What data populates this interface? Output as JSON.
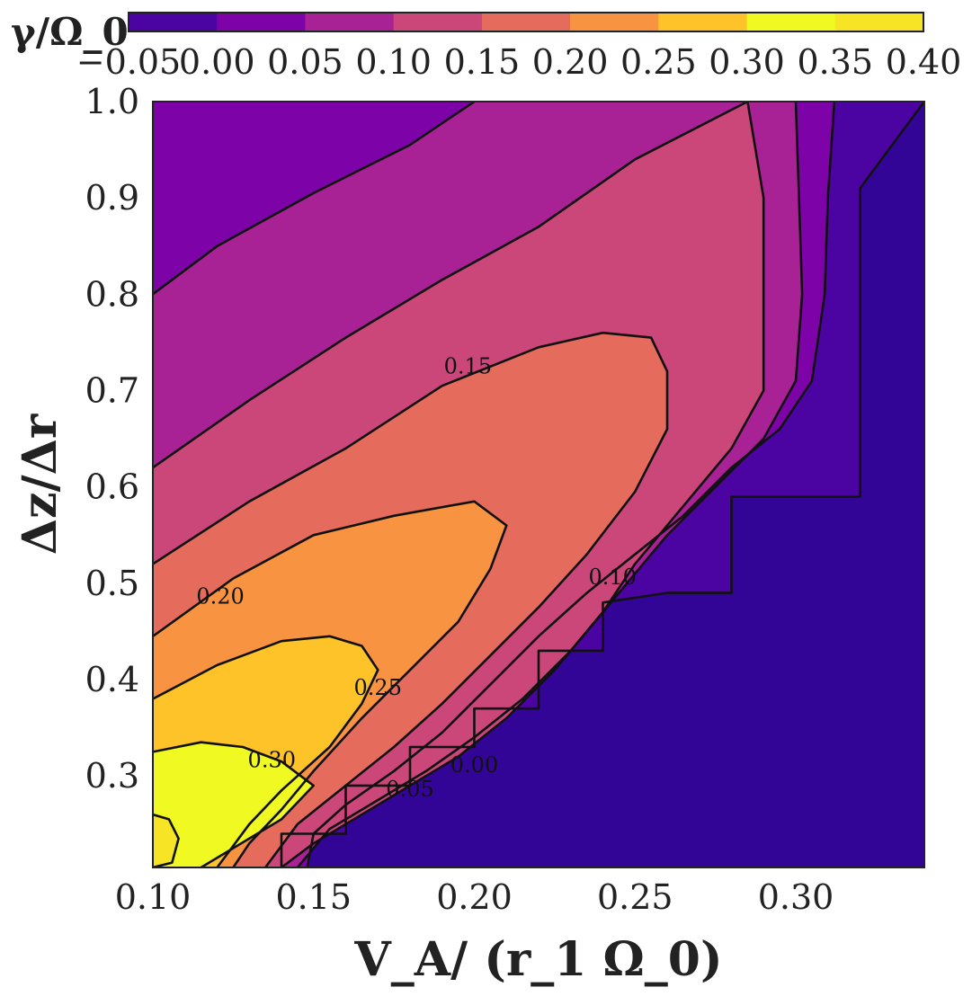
{
  "chart_data": {
    "type": "heatmap",
    "subtype": "filled-contour",
    "colormap": "plasma",
    "xlabel": "V_A/ (r_1 Ω_0)",
    "ylabel": "Δz/Δr",
    "colorbar_label": "γ/Ω_0",
    "colorbar_position": "top",
    "grid": false,
    "xlim": [
      0.1,
      0.34
    ],
    "ylim": [
      0.205,
      1.0
    ],
    "x_ticks": [
      "0.10",
      "0.15",
      "0.20",
      "0.25",
      "0.30"
    ],
    "y_ticks": [
      "0.3",
      "0.4",
      "0.5",
      "0.6",
      "0.7",
      "0.8",
      "0.9",
      "1.0"
    ],
    "levels": [
      -0.05,
      0.0,
      0.05,
      0.1,
      0.15,
      0.2,
      0.25,
      0.3,
      0.35,
      0.4
    ],
    "colorbar_ticks": [
      "−0.05",
      "0.00",
      "0.05",
      "0.10",
      "0.15",
      "0.20",
      "0.25",
      "0.30",
      "0.35",
      "0.40"
    ],
    "band_colors": [
      "#4b03a1",
      "#7d03a8",
      "#a82296",
      "#cb4679",
      "#e56b5d",
      "#f89441",
      "#fdc328",
      "#f0f921",
      "#f7e525"
    ],
    "below_min_color": "#330597",
    "contour_labels": [
      {
        "text": "0.00",
        "x": 0.2,
        "y": 0.31
      },
      {
        "text": "0.05",
        "x": 0.18,
        "y": 0.285
      },
      {
        "text": "0.10",
        "x": 0.243,
        "y": 0.505
      },
      {
        "text": "0.15",
        "x": 0.198,
        "y": 0.724
      },
      {
        "text": "0.20",
        "x": 0.121,
        "y": 0.485
      },
      {
        "text": "0.25",
        "x": 0.17,
        "y": 0.39
      },
      {
        "text": "0.30",
        "x": 0.137,
        "y": 0.315
      }
    ],
    "contours": [
      {
        "level": 0.35,
        "points": [
          [
            0.1,
            0.26
          ],
          [
            0.105,
            0.255
          ],
          [
            0.108,
            0.235
          ],
          [
            0.106,
            0.21
          ],
          [
            0.1,
            0.205
          ]
        ]
      },
      {
        "level": 0.3,
        "points": [
          [
            0.1,
            0.325
          ],
          [
            0.115,
            0.335
          ],
          [
            0.128,
            0.33
          ],
          [
            0.14,
            0.315
          ],
          [
            0.15,
            0.29
          ],
          [
            0.14,
            0.255
          ],
          [
            0.13,
            0.235
          ],
          [
            0.115,
            0.205
          ]
        ]
      },
      {
        "level": 0.25,
        "points": [
          [
            0.1,
            0.38
          ],
          [
            0.12,
            0.415
          ],
          [
            0.14,
            0.44
          ],
          [
            0.155,
            0.445
          ],
          [
            0.165,
            0.435
          ],
          [
            0.17,
            0.41
          ],
          [
            0.165,
            0.375
          ],
          [
            0.155,
            0.33
          ],
          [
            0.14,
            0.285
          ],
          [
            0.13,
            0.25
          ],
          [
            0.12,
            0.205
          ]
        ]
      },
      {
        "level": 0.2,
        "points": [
          [
            0.1,
            0.445
          ],
          [
            0.125,
            0.505
          ],
          [
            0.15,
            0.55
          ],
          [
            0.175,
            0.57
          ],
          [
            0.2,
            0.585
          ],
          [
            0.21,
            0.56
          ],
          [
            0.205,
            0.515
          ],
          [
            0.195,
            0.46
          ],
          [
            0.18,
            0.41
          ],
          [
            0.165,
            0.36
          ],
          [
            0.15,
            0.305
          ],
          [
            0.14,
            0.265
          ],
          [
            0.13,
            0.23
          ],
          [
            0.125,
            0.205
          ]
        ]
      },
      {
        "level": 0.15,
        "points": [
          [
            0.1,
            0.52
          ],
          [
            0.13,
            0.585
          ],
          [
            0.16,
            0.64
          ],
          [
            0.19,
            0.705
          ],
          [
            0.22,
            0.745
          ],
          [
            0.24,
            0.76
          ],
          [
            0.255,
            0.755
          ],
          [
            0.26,
            0.72
          ],
          [
            0.26,
            0.66
          ],
          [
            0.25,
            0.595
          ],
          [
            0.235,
            0.53
          ],
          [
            0.22,
            0.475
          ],
          [
            0.205,
            0.425
          ],
          [
            0.19,
            0.375
          ],
          [
            0.175,
            0.33
          ],
          [
            0.16,
            0.29
          ],
          [
            0.145,
            0.25
          ],
          [
            0.135,
            0.205
          ]
        ]
      },
      {
        "level": 0.1,
        "points": [
          [
            0.1,
            0.62
          ],
          [
            0.13,
            0.69
          ],
          [
            0.16,
            0.755
          ],
          [
            0.19,
            0.815
          ],
          [
            0.22,
            0.87
          ],
          [
            0.25,
            0.94
          ],
          [
            0.285,
            1.0
          ],
          [
            0.29,
            0.9
          ],
          [
            0.29,
            0.8
          ],
          [
            0.29,
            0.7
          ],
          [
            0.28,
            0.64
          ],
          [
            0.265,
            0.58
          ],
          [
            0.25,
            0.52
          ],
          [
            0.24,
            0.47
          ],
          [
            0.225,
            0.41
          ],
          [
            0.21,
            0.36
          ],
          [
            0.195,
            0.32
          ],
          [
            0.18,
            0.29
          ],
          [
            0.165,
            0.26
          ],
          [
            0.15,
            0.23
          ],
          [
            0.14,
            0.205
          ]
        ]
      },
      {
        "level": 0.05,
        "points": [
          [
            0.1,
            0.8
          ],
          [
            0.12,
            0.85
          ],
          [
            0.15,
            0.905
          ],
          [
            0.18,
            0.955
          ],
          [
            0.2,
            1.0
          ]
        ]
      },
      {
        "level": 0.05,
        "points": [
          [
            0.3,
            1.0
          ],
          [
            0.301,
            0.9
          ],
          [
            0.302,
            0.8
          ],
          [
            0.3,
            0.71
          ],
          [
            0.29,
            0.65
          ],
          [
            0.275,
            0.6
          ],
          [
            0.26,
            0.55
          ],
          [
            0.25,
            0.51
          ],
          [
            0.24,
            0.47
          ],
          [
            0.23,
            0.43
          ],
          [
            0.215,
            0.38
          ],
          [
            0.2,
            0.34
          ],
          [
            0.185,
            0.305
          ],
          [
            0.17,
            0.275
          ],
          [
            0.155,
            0.245
          ],
          [
            0.145,
            0.205
          ]
        ]
      },
      {
        "level": 0.0,
        "points": [
          [
            0.312,
            1.0
          ],
          [
            0.31,
            0.9
          ],
          [
            0.309,
            0.8
          ],
          [
            0.305,
            0.71
          ],
          [
            0.295,
            0.66
          ],
          [
            0.28,
            0.62
          ],
          [
            0.265,
            0.57
          ],
          [
            0.25,
            0.53
          ],
          [
            0.235,
            0.49
          ],
          [
            0.22,
            0.445
          ],
          [
            0.205,
            0.395
          ],
          [
            0.19,
            0.345
          ],
          [
            0.175,
            0.305
          ],
          [
            0.16,
            0.27
          ],
          [
            0.15,
            0.24
          ],
          [
            0.148,
            0.205
          ]
        ]
      },
      {
        "level": -0.05,
        "points": [
          [
            0.34,
            1.0
          ],
          [
            0.32,
            0.91
          ],
          [
            0.32,
            0.59
          ],
          [
            0.3,
            0.59
          ],
          [
            0.28,
            0.59
          ],
          [
            0.28,
            0.49
          ],
          [
            0.26,
            0.49
          ],
          [
            0.24,
            0.48
          ],
          [
            0.24,
            0.43
          ],
          [
            0.22,
            0.43
          ],
          [
            0.22,
            0.37
          ],
          [
            0.2,
            0.37
          ],
          [
            0.2,
            0.33
          ],
          [
            0.18,
            0.33
          ],
          [
            0.18,
            0.29
          ],
          [
            0.16,
            0.29
          ],
          [
            0.16,
            0.24
          ],
          [
            0.14,
            0.24
          ],
          [
            0.14,
            0.205
          ]
        ]
      }
    ]
  }
}
